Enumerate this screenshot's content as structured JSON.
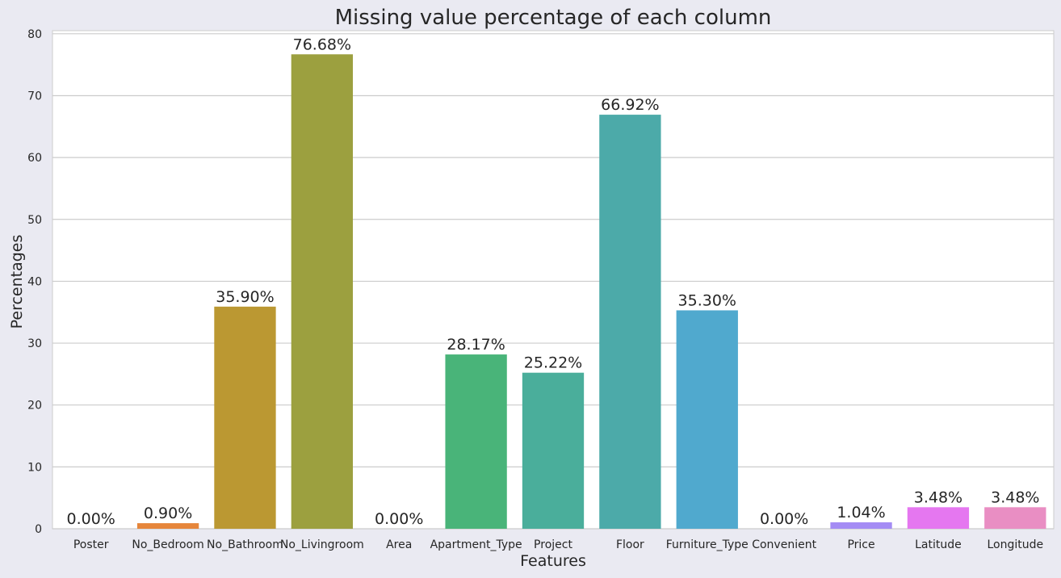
{
  "chart_data": {
    "type": "bar",
    "title": "Missing value percentage of each column",
    "xlabel": "Features",
    "ylabel": "Percentages",
    "ylim": [
      0,
      80.5
    ],
    "yticks": [
      0,
      10,
      20,
      30,
      40,
      50,
      60,
      70,
      80
    ],
    "grid": true,
    "categories": [
      "Poster",
      "No_Bedroom",
      "No_Bathroom",
      "No_Livingroom",
      "Area",
      "Apartment_Type",
      "Project",
      "Floor",
      "Furniture_Type",
      "Convenient",
      "Price",
      "Latitude",
      "Longitude"
    ],
    "values": [
      0.0,
      0.9,
      35.9,
      76.68,
      0.0,
      28.17,
      25.22,
      66.92,
      35.3,
      0.0,
      1.04,
      3.48,
      3.48
    ],
    "data_labels": [
      "0.00%",
      "0.90%",
      "35.90%",
      "76.68%",
      "0.00%",
      "28.17%",
      "25.22%",
      "66.92%",
      "35.30%",
      "0.00%",
      "1.04%",
      "3.48%",
      "3.48%"
    ],
    "colors": [
      "#f77189",
      "#e6863b",
      "#bb9832",
      "#9ca03f",
      "#50b131",
      "#49b479",
      "#4aae9b",
      "#4caaa9",
      "#50a9ce",
      "#5b9fec",
      "#a48cf4",
      "#e577f0",
      "#e98ec3"
    ]
  }
}
